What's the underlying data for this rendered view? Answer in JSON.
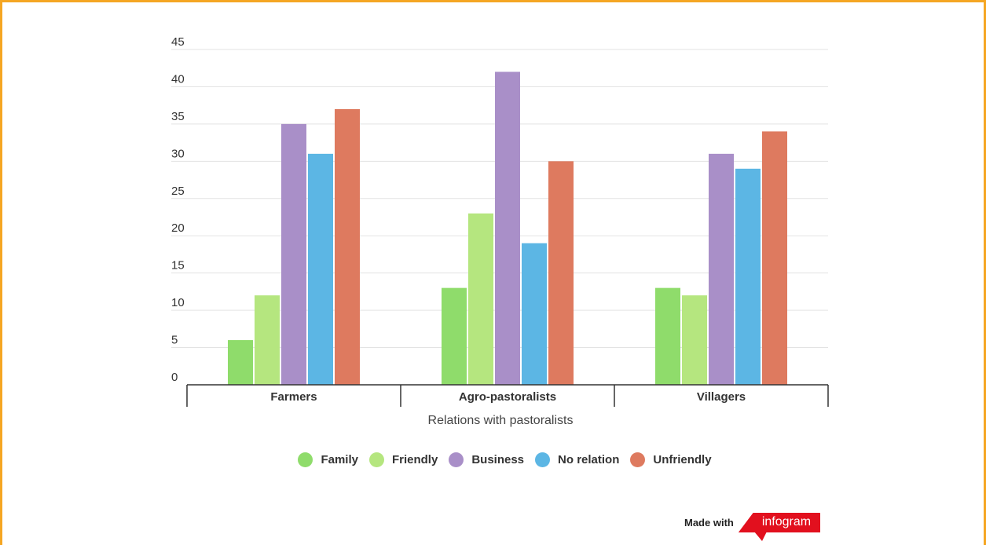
{
  "chart_data": {
    "type": "bar",
    "categories": [
      "Farmers",
      "Agro-pastoralists",
      "Villagers"
    ],
    "series": [
      {
        "name": "Family",
        "color": "#8FDC6B",
        "values": [
          6,
          13,
          13
        ]
      },
      {
        "name": "Friendly",
        "color": "#B5E67F",
        "values": [
          12,
          23,
          12
        ]
      },
      {
        "name": "Business",
        "color": "#A98FC8",
        "values": [
          35,
          42,
          31
        ]
      },
      {
        "name": "No relation",
        "color": "#5CB6E4",
        "values": [
          31,
          19,
          29
        ]
      },
      {
        "name": "Unfriendly",
        "color": "#DE7A5F",
        "values": [
          37,
          30,
          34
        ]
      }
    ],
    "xlabel": "Relations with pastoralists",
    "ylabel": "",
    "ylim": [
      0,
      45
    ],
    "yticks": [
      0,
      5,
      10,
      15,
      20,
      25,
      30,
      35,
      40,
      45
    ],
    "grid": true,
    "legend": "bottom"
  },
  "footer": {
    "made_with": "Made with",
    "brand": "infogram",
    "brand_color": "#E2101E"
  },
  "frame_color": "#F5A623"
}
